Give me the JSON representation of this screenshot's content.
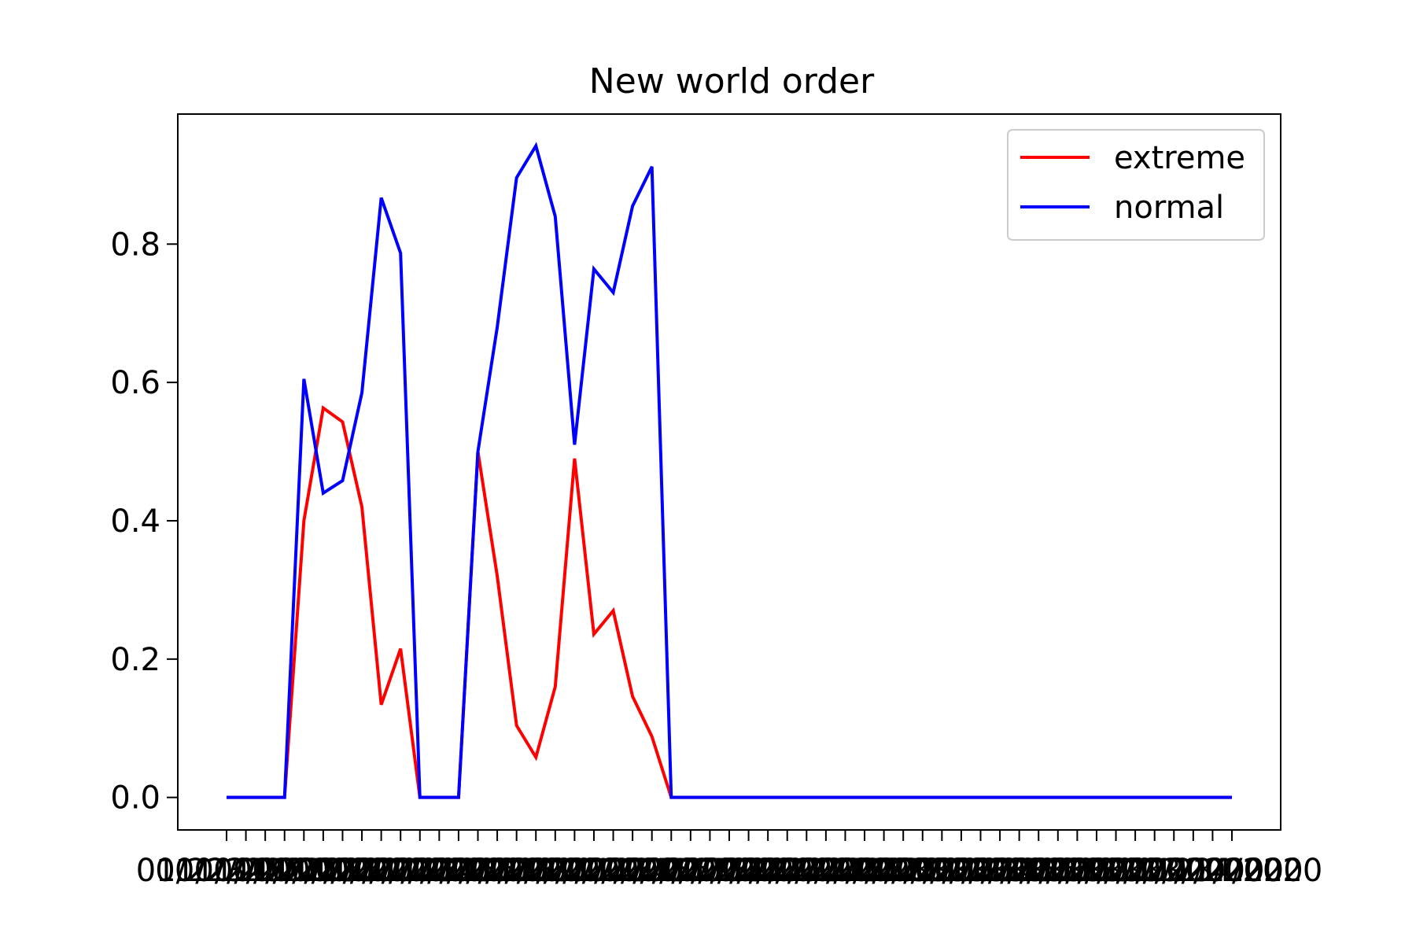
{
  "chart_data": {
    "type": "line",
    "title": "New world order",
    "xlabel": "",
    "ylabel": "",
    "x": [
      "01/22/2020",
      "01/23/2020",
      "01/24/2020",
      "01/25/2020",
      "01/26/2020",
      "01/27/2020",
      "01/28/2020",
      "01/29/2020",
      "01/30/2020",
      "01/31/2020",
      "02/01/2020",
      "02/02/2020",
      "02/03/2020",
      "02/04/2020",
      "02/05/2020",
      "02/06/2020",
      "02/07/2020",
      "02/08/2020",
      "02/09/2020",
      "02/10/2020",
      "02/11/2020",
      "02/12/2020",
      "02/13/2020",
      "02/14/2020",
      "02/15/2020",
      "02/16/2020",
      "02/17/2020",
      "02/18/2020",
      "02/19/2020",
      "02/20/2020",
      "02/21/2020",
      "02/22/2020",
      "02/23/2020",
      "02/24/2020",
      "02/25/2020",
      "02/26/2020",
      "02/27/2020",
      "02/28/2020",
      "02/29/2020",
      "03/01/2020",
      "03/02/2020",
      "03/03/2020",
      "03/04/2020",
      "03/05/2020",
      "03/06/2020",
      "03/07/2020",
      "03/08/2020",
      "03/09/2020",
      "03/10/2020",
      "03/11/2020",
      "03/12/2020",
      "03/13/2020",
      "03/14/2020"
    ],
    "yticks": [
      "0.0",
      "0.2",
      "0.4",
      "0.6",
      "0.8"
    ],
    "ylim": [
      -0.047,
      0.988
    ],
    "grid": false,
    "legend_position": "top-right",
    "series": [
      {
        "name": "extreme",
        "color": "#ff0000",
        "values": [
          0,
          0,
          0,
          0,
          0.4,
          0.563,
          0.543,
          0.42,
          0.134,
          0.215,
          0,
          0,
          0,
          0.5,
          0.32,
          0.104,
          0.058,
          0.16,
          0.49,
          0.236,
          0.27,
          0.146,
          0.088,
          0,
          0,
          0,
          0,
          0,
          0,
          0,
          0,
          0,
          0,
          0,
          0,
          0,
          0,
          0,
          0,
          0,
          0,
          0,
          0,
          0,
          0,
          0,
          0,
          0,
          0,
          0,
          0,
          0,
          0
        ]
      },
      {
        "name": "normal",
        "color": "#0000ff",
        "values": [
          0,
          0,
          0,
          0,
          0.605,
          0.44,
          0.458,
          0.585,
          0.867,
          0.787,
          0,
          0,
          0,
          0.5,
          0.68,
          0.896,
          0.942,
          0.84,
          0.51,
          0.764,
          0.73,
          0.855,
          0.912,
          0,
          0,
          0,
          0,
          0,
          0,
          0,
          0,
          0,
          0,
          0,
          0,
          0,
          0,
          0,
          0,
          0,
          0,
          0,
          0,
          0,
          0,
          0,
          0,
          0,
          0,
          0,
          0,
          0,
          0
        ]
      }
    ]
  }
}
